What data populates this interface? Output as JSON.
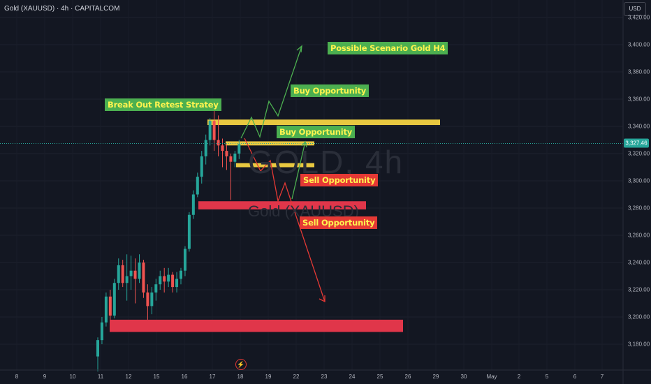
{
  "header": {
    "symbol_line": "Gold (XAUUSD) · 4h · CAPITALCOM",
    "currency": "USD"
  },
  "watermark": {
    "ticker": "GOLD, 4h",
    "name": "Gold (XAUUSD)"
  },
  "price_axis": {
    "labels": [
      "3,420.00",
      "3,400.00",
      "3,380.00",
      "3,360.00",
      "3,340.00",
      "3,320.00",
      "3,300.00",
      "3,280.00",
      "3,260.00",
      "3,240.00",
      "3,220.00",
      "3,200.00",
      "3,180.00"
    ],
    "values": [
      3420,
      3400,
      3380,
      3360,
      3340,
      3320,
      3300,
      3280,
      3260,
      3240,
      3220,
      3200,
      3180
    ],
    "current_price": "3,327.46"
  },
  "time_axis": {
    "labels": [
      "8",
      "9",
      "10",
      "11",
      "12",
      "15",
      "16",
      "17",
      "18",
      "19",
      "22",
      "23",
      "24",
      "25",
      "26",
      "29",
      "30",
      "May",
      "2",
      "5",
      "6",
      "7"
    ]
  },
  "annotations": {
    "possible": "Possible Scenario Gold H4",
    "breakout": "Break Out Retest Stratey",
    "buy1": "Buy Opportunity",
    "buy2": "Buy Opportunity",
    "sell1": "Sell Opportunity",
    "sell2": "Sell Opportunity"
  },
  "colors": {
    "up": "#26a69a",
    "down": "#ef5350",
    "yellow_zone": "#e8c840",
    "red_zone": "#e0364a",
    "arrow_green": "#4caf50",
    "arrow_red": "#e53935"
  },
  "chart_data": {
    "type": "candlestick",
    "title": "Gold (XAUUSD) · 4h · CAPITALCOM",
    "ylim": [
      3166,
      3427
    ],
    "zones": [
      {
        "kind": "resistance",
        "low": 3341,
        "high": 3345
      },
      {
        "kind": "retest",
        "low": 3326,
        "high": 3329
      },
      {
        "kind": "retest",
        "low": 3310,
        "high": 3313
      },
      {
        "kind": "support",
        "low": 3279,
        "high": 3285
      },
      {
        "kind": "support",
        "low": 3189,
        "high": 3198
      }
    ],
    "candles": [
      [
        3171,
        3183,
        3160,
        3185
      ],
      [
        3183,
        3196,
        3180,
        3200
      ],
      [
        3196,
        3215,
        3193,
        3218
      ],
      [
        3215,
        3201,
        3198,
        3220
      ],
      [
        3201,
        3225,
        3199,
        3228
      ],
      [
        3225,
        3238,
        3220,
        3243
      ],
      [
        3238,
        3225,
        3222,
        3242
      ],
      [
        3225,
        3230,
        3212,
        3246
      ],
      [
        3230,
        3234,
        3220,
        3245
      ],
      [
        3234,
        3228,
        3210,
        3243
      ],
      [
        3228,
        3240,
        3225,
        3246
      ],
      [
        3240,
        3218,
        3214,
        3242
      ],
      [
        3218,
        3208,
        3198,
        3224
      ],
      [
        3208,
        3218,
        3202,
        3222
      ],
      [
        3218,
        3224,
        3212,
        3228
      ],
      [
        3224,
        3230,
        3220,
        3234
      ],
      [
        3230,
        3226,
        3218,
        3236
      ],
      [
        3226,
        3231,
        3222,
        3236
      ],
      [
        3231,
        3222,
        3218,
        3233
      ],
      [
        3222,
        3228,
        3218,
        3233
      ],
      [
        3228,
        3234,
        3224,
        3236
      ],
      [
        3234,
        3250,
        3230,
        3252
      ],
      [
        3250,
        3275,
        3248,
        3277
      ],
      [
        3275,
        3290,
        3272,
        3293
      ],
      [
        3290,
        3303,
        3288,
        3306
      ],
      [
        3303,
        3318,
        3298,
        3322
      ],
      [
        3318,
        3330,
        3312,
        3334
      ],
      [
        3330,
        3344,
        3326,
        3346
      ],
      [
        3344,
        3330,
        3322,
        3358
      ],
      [
        3330,
        3326,
        3318,
        3348
      ],
      [
        3326,
        3322,
        3310,
        3331
      ],
      [
        3322,
        3318,
        3308,
        3327
      ],
      [
        3318,
        3314,
        3286,
        3320
      ],
      [
        3314,
        3320,
        3310,
        3322
      ],
      [
        3320,
        3327,
        3316,
        3330
      ]
    ]
  }
}
